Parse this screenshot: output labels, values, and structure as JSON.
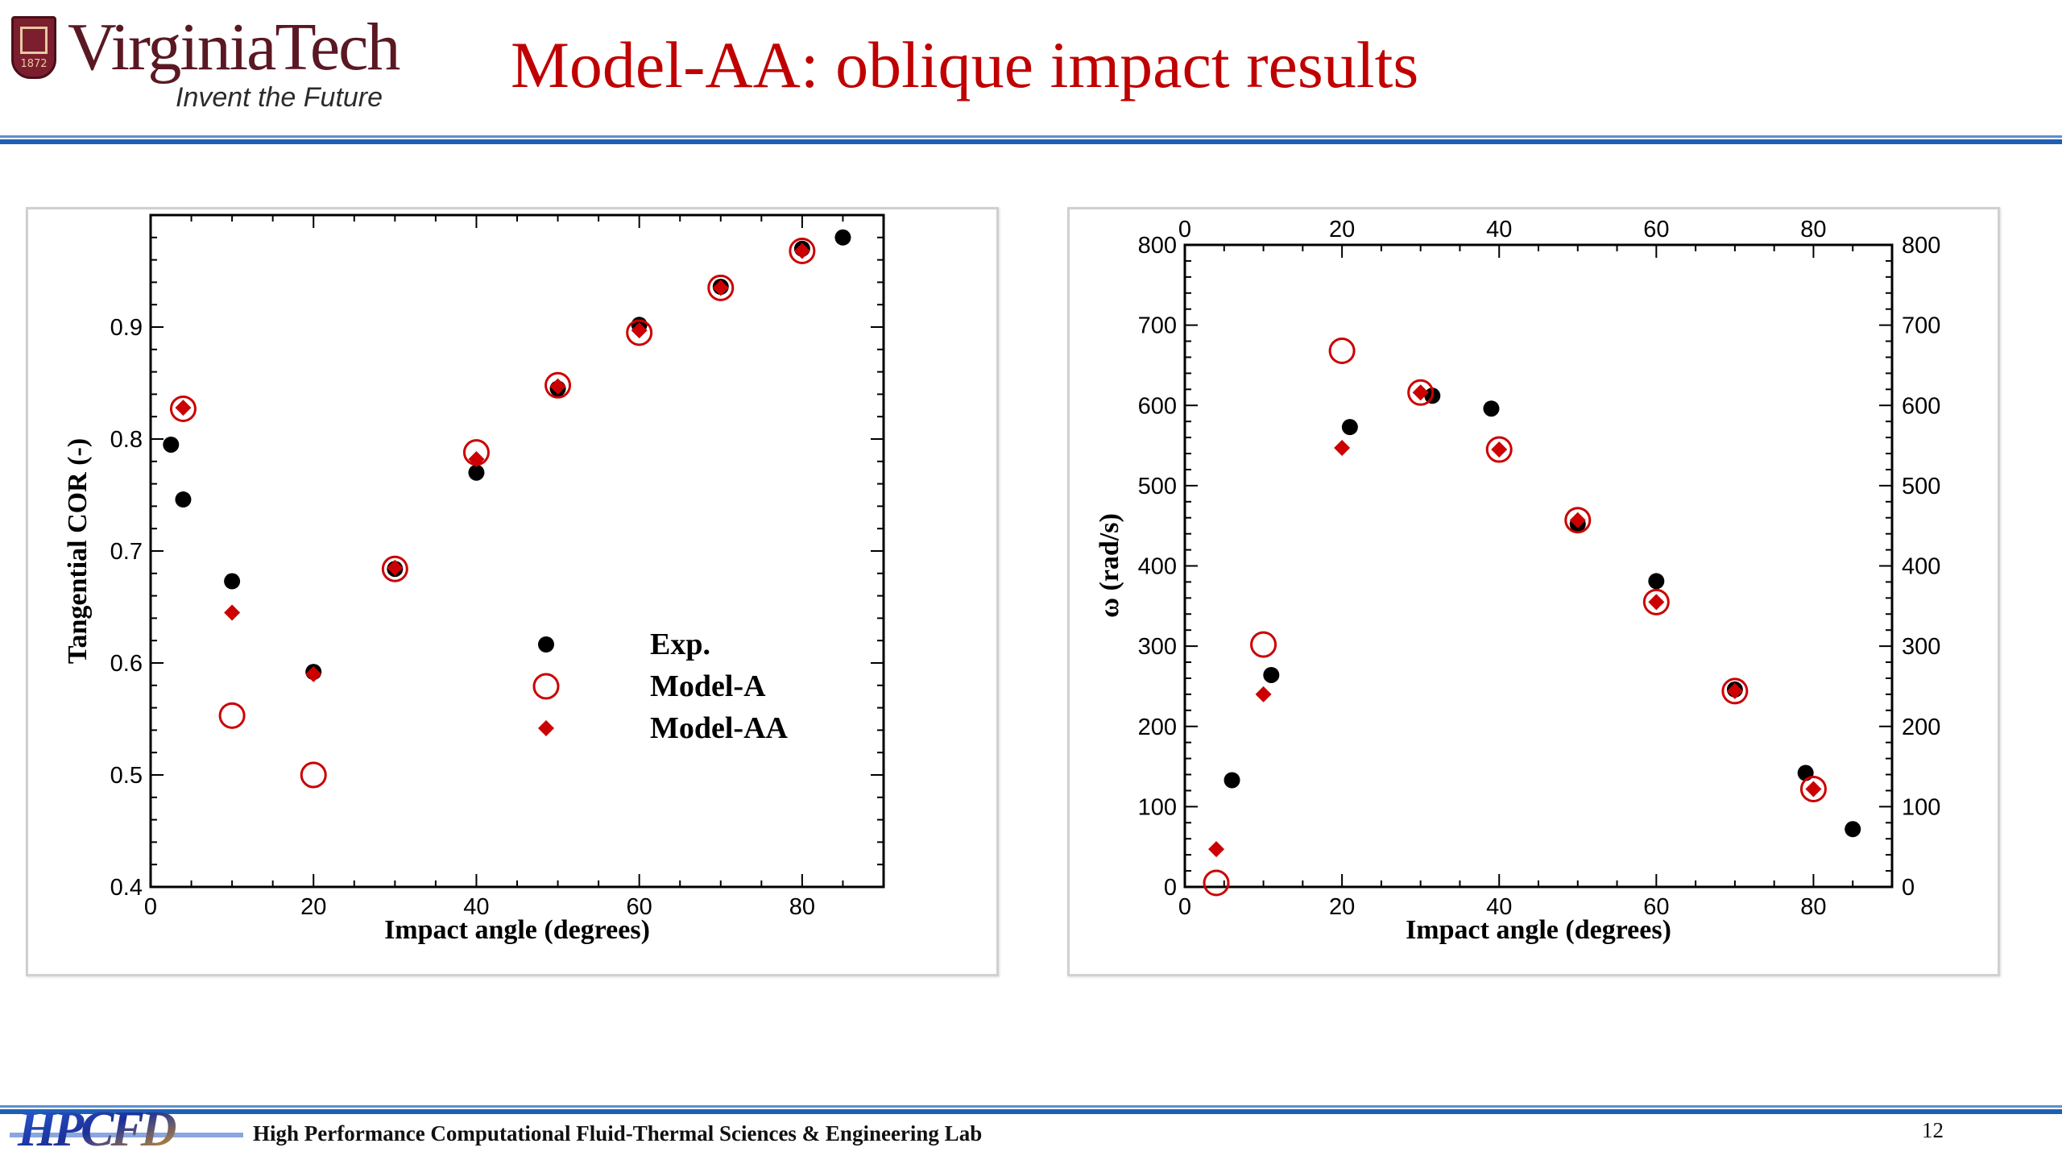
{
  "header": {
    "logo_name": "VirginiaTech",
    "logo_tagline": "Invent the Future",
    "logo_year": "1872",
    "title": "Model-AA: oblique impact results"
  },
  "footer": {
    "lab_logo_text": "HPCFD",
    "lab_name": "High Performance Computational Fluid-Thermal Sciences & Engineering Lab",
    "page_number": "12"
  },
  "colors": {
    "title_red": "#c00000",
    "marker_red": "#cc0000",
    "marker_black": "#000000",
    "rule_blue": "#1e5fb4"
  },
  "chart_data": [
    {
      "type": "scatter",
      "xlabel": "Impact angle (degrees)",
      "ylabel": "Tangential COR (-)",
      "xlim": [
        0,
        90
      ],
      "ylim": [
        0.4,
        1.0
      ],
      "xticks": [
        0,
        20,
        40,
        60,
        80
      ],
      "yticks": [
        0.4,
        0.5,
        0.6,
        0.7,
        0.8,
        0.9
      ],
      "xtick_labels": [
        "0",
        "20",
        "40",
        "60",
        "80"
      ],
      "ytick_labels": [
        "0.4",
        "0.5",
        "0.6",
        "0.7",
        "0.8",
        "0.9"
      ],
      "legend_position": "center-right",
      "series": [
        {
          "name": "Exp.",
          "marker": "filled-circle",
          "color": "#000000",
          "x": [
            2.5,
            4,
            10,
            20,
            30,
            40,
            50,
            60,
            70,
            80,
            85
          ],
          "y": [
            0.795,
            0.746,
            0.673,
            0.592,
            0.684,
            0.77,
            0.845,
            0.902,
            0.936,
            0.97,
            0.98
          ]
        },
        {
          "name": "Model-A",
          "marker": "open-circle",
          "color": "#cc0000",
          "x": [
            4,
            10,
            20,
            30,
            40,
            50,
            60,
            70,
            80
          ],
          "y": [
            0.827,
            0.553,
            0.5,
            0.684,
            0.788,
            0.848,
            0.895,
            0.935,
            0.968
          ]
        },
        {
          "name": "Model-AA",
          "marker": "filled-diamond",
          "color": "#cc0000",
          "x": [
            4,
            10,
            20,
            30,
            40,
            50,
            60,
            70,
            80
          ],
          "y": [
            0.828,
            0.645,
            0.59,
            0.685,
            0.782,
            0.847,
            0.897,
            0.935,
            0.968
          ]
        }
      ]
    },
    {
      "type": "scatter",
      "xlabel": "Impact angle (degrees)",
      "ylabel": "ω (rad/s)",
      "xlim": [
        0,
        90
      ],
      "ylim": [
        0,
        800
      ],
      "xticks": [
        0,
        20,
        40,
        60,
        80
      ],
      "yticks": [
        0,
        100,
        200,
        300,
        400,
        500,
        600,
        700,
        800
      ],
      "xtick_labels": [
        "0",
        "20",
        "40",
        "60",
        "80"
      ],
      "ytick_labels": [
        "0",
        "100",
        "200",
        "300",
        "400",
        "500",
        "600",
        "700",
        "800"
      ],
      "top_axis_labels": true,
      "right_axis_labels": true,
      "series": [
        {
          "name": "Exp.",
          "marker": "filled-circle",
          "color": "#000000",
          "x": [
            6,
            11,
            21,
            31.5,
            39,
            50,
            60,
            70,
            79,
            85
          ],
          "y": [
            133,
            264,
            573,
            612,
            596,
            452,
            381,
            246,
            142,
            72
          ]
        },
        {
          "name": "Model-A",
          "marker": "open-circle",
          "color": "#cc0000",
          "x": [
            4,
            10,
            20,
            30,
            40,
            50,
            60,
            70,
            80
          ],
          "y": [
            5,
            302,
            668,
            616,
            545,
            457,
            355,
            244,
            122
          ]
        },
        {
          "name": "Model-AA",
          "marker": "filled-diamond",
          "color": "#cc0000",
          "x": [
            4,
            10,
            20,
            30,
            40,
            50,
            60,
            70,
            80
          ],
          "y": [
            47,
            240,
            547,
            616,
            545,
            457,
            355,
            244,
            122
          ]
        }
      ]
    }
  ]
}
